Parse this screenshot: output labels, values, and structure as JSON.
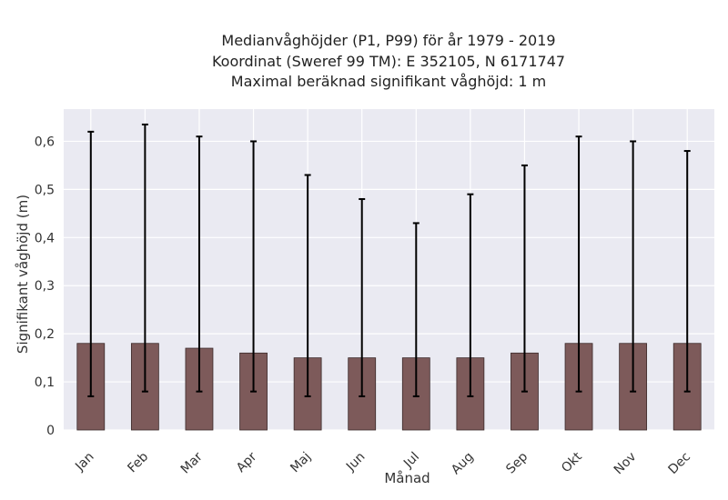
{
  "chart_data": {
    "type": "bar",
    "title_lines": [
      "Medianvåghöjder (P1, P99) för år 1979 - 2019",
      "Koordinat (Sweref 99 TM): E 352105, N 6171747",
      "Maximal beräknad signifikant våghöjd: 1 m"
    ],
    "xlabel": "Månad",
    "ylabel": "Signifikant våghöjd (m)",
    "categories": [
      "Jan",
      "Feb",
      "Mar",
      "Apr",
      "Maj",
      "Jun",
      "Jul",
      "Aug",
      "Sep",
      "Okt",
      "Nov",
      "Dec"
    ],
    "series": [
      {
        "values": [
          0.18,
          0.18,
          0.17,
          0.16,
          0.15,
          0.15,
          0.15,
          0.15,
          0.16,
          0.18,
          0.18,
          0.18
        ],
        "error_low": [
          0.07,
          0.08,
          0.08,
          0.08,
          0.07,
          0.07,
          0.07,
          0.07,
          0.08,
          0.08,
          0.08,
          0.08
        ],
        "error_high": [
          0.62,
          0.635,
          0.61,
          0.6,
          0.53,
          0.48,
          0.43,
          0.49,
          0.55,
          0.61,
          0.6,
          0.58
        ]
      }
    ],
    "yticks": [
      0,
      0.1,
      0.2,
      0.3,
      0.4,
      0.5,
      0.6
    ],
    "ytick_labels": [
      "0",
      "0,1",
      "0,2",
      "0,3",
      "0,4",
      "0,5",
      "0,6"
    ],
    "ylim": [
      0,
      0.667
    ],
    "grid": true,
    "colors": {
      "bar": "#7d5a5a",
      "bar_edge": "#3b2a2a",
      "error": "#000000",
      "plot_bg": "#eaeaf2",
      "grid": "#ffffff"
    }
  }
}
